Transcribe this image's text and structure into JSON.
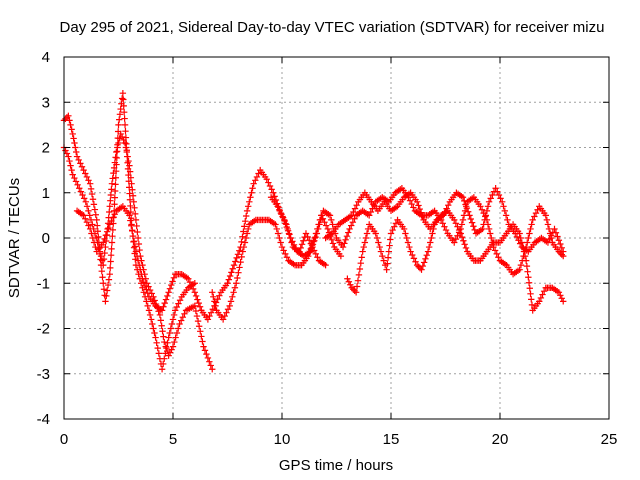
{
  "chart_data": {
    "type": "scatter",
    "title": "Day 295 of 2021, Sidereal Day-to-day VTEC variation (SDTVAR) for receiver mizu",
    "xlabel": "GPS time / hours",
    "ylabel": "SDTVAR / TECUs",
    "xlim": [
      0,
      25
    ],
    "ylim": [
      -4,
      4
    ],
    "xticks": [
      0,
      5,
      10,
      15,
      20,
      25
    ],
    "xtick_labels": [
      "0",
      "5",
      "10",
      "15",
      "20",
      "25"
    ],
    "yticks": [
      -4,
      -3,
      -2,
      -1,
      0,
      1,
      2,
      3,
      4
    ],
    "ytick_labels": [
      "-4",
      "-3",
      "-2",
      "-1",
      "0",
      "1",
      "2",
      "3",
      "4"
    ],
    "grid": true,
    "marker": "plus",
    "color": "#ff0000",
    "series": [
      {
        "name": "track-1",
        "points": [
          [
            0.0,
            2.6
          ],
          [
            0.2,
            2.7
          ],
          [
            0.4,
            2.3
          ],
          [
            0.6,
            1.8
          ],
          [
            0.9,
            1.5
          ],
          [
            1.2,
            1.2
          ],
          [
            1.5,
            0.4
          ],
          [
            1.7,
            -0.6
          ],
          [
            1.9,
            -1.4
          ],
          [
            2.1,
            -0.8
          ],
          [
            2.3,
            0.6
          ],
          [
            2.5,
            2.5
          ],
          [
            2.7,
            3.2
          ],
          [
            2.9,
            1.8
          ],
          [
            3.1,
            0.3
          ],
          [
            3.3,
            -0.6
          ],
          [
            3.6,
            -1.1
          ],
          [
            3.9,
            -1.6
          ],
          [
            4.2,
            -2.2
          ],
          [
            4.5,
            -2.9
          ],
          [
            4.8,
            -2.2
          ],
          [
            5.1,
            -1.6
          ],
          [
            5.4,
            -1.3
          ],
          [
            5.7,
            -1.1
          ],
          [
            6.0,
            -1.0
          ]
        ]
      },
      {
        "name": "track-2",
        "points": [
          [
            0.0,
            2.0
          ],
          [
            0.2,
            1.8
          ],
          [
            0.4,
            1.4
          ],
          [
            0.7,
            1.1
          ],
          [
            1.0,
            0.8
          ],
          [
            1.3,
            0.3
          ],
          [
            1.6,
            -0.2
          ],
          [
            1.8,
            -0.6
          ],
          [
            2.0,
            0.2
          ],
          [
            2.2,
            1.2
          ],
          [
            2.4,
            1.9
          ],
          [
            2.6,
            2.3
          ],
          [
            2.8,
            2.1
          ],
          [
            3.0,
            1.6
          ],
          [
            3.2,
            0.8
          ],
          [
            3.5,
            -0.4
          ],
          [
            3.8,
            -1.0
          ],
          [
            4.1,
            -1.3
          ],
          [
            4.4,
            -1.7
          ],
          [
            4.6,
            -2.3
          ],
          [
            4.8,
            -2.6
          ],
          [
            5.0,
            -2.4
          ],
          [
            5.3,
            -1.9
          ],
          [
            5.6,
            -1.6
          ],
          [
            6.0,
            -1.5
          ],
          [
            6.4,
            -2.4
          ],
          [
            6.8,
            -2.9
          ]
        ]
      },
      {
        "name": "track-3",
        "points": [
          [
            0.6,
            0.6
          ],
          [
            0.9,
            0.5
          ],
          [
            1.2,
            0.2
          ],
          [
            1.5,
            -0.3
          ],
          [
            1.8,
            -0.1
          ],
          [
            2.1,
            0.3
          ],
          [
            2.4,
            0.6
          ],
          [
            2.7,
            0.7
          ],
          [
            3.0,
            0.5
          ],
          [
            3.3,
            -0.3
          ],
          [
            3.6,
            -0.9
          ],
          [
            3.9,
            -1.3
          ],
          [
            4.2,
            -1.5
          ],
          [
            4.5,
            -1.6
          ],
          [
            4.8,
            -1.2
          ],
          [
            5.1,
            -0.8
          ],
          [
            5.4,
            -0.8
          ],
          [
            5.7,
            -0.9
          ],
          [
            6.0,
            -1.2
          ],
          [
            6.3,
            -1.6
          ],
          [
            6.6,
            -1.8
          ],
          [
            6.9,
            -1.5
          ],
          [
            7.2,
            -1.2
          ],
          [
            7.5,
            -1.0
          ],
          [
            7.8,
            -0.6
          ],
          [
            8.1,
            -0.2
          ],
          [
            8.4,
            0.6
          ],
          [
            8.7,
            1.2
          ],
          [
            9.0,
            1.5
          ],
          [
            9.3,
            1.3
          ],
          [
            9.6,
            1.0
          ],
          [
            9.9,
            0.6
          ],
          [
            10.2,
            0.3
          ],
          [
            10.5,
            -0.2
          ],
          [
            10.8,
            -0.3
          ],
          [
            11.1,
            0.1
          ],
          [
            11.4,
            -0.2
          ],
          [
            11.7,
            -0.5
          ],
          [
            12.0,
            -0.6
          ]
        ]
      },
      {
        "name": "track-4",
        "points": [
          [
            6.8,
            -1.2
          ],
          [
            7.0,
            -1.6
          ],
          [
            7.3,
            -1.8
          ],
          [
            7.6,
            -1.5
          ],
          [
            7.9,
            -1.0
          ],
          [
            8.2,
            -0.3
          ],
          [
            8.5,
            0.3
          ],
          [
            8.8,
            0.4
          ],
          [
            9.1,
            0.4
          ],
          [
            9.4,
            0.4
          ],
          [
            9.7,
            0.3
          ],
          [
            10.0,
            -0.2
          ],
          [
            10.3,
            -0.5
          ],
          [
            10.6,
            -0.6
          ],
          [
            10.9,
            -0.6
          ],
          [
            11.2,
            -0.4
          ],
          [
            11.5,
            0.0
          ],
          [
            11.8,
            0.5
          ],
          [
            12.1,
            0.2
          ],
          [
            12.4,
            -0.2
          ],
          [
            12.7,
            -0.4
          ]
        ]
      },
      {
        "name": "track-5",
        "points": [
          [
            9.5,
            0.9
          ],
          [
            9.8,
            0.7
          ],
          [
            10.1,
            0.4
          ],
          [
            10.4,
            0.0
          ],
          [
            10.7,
            -0.3
          ],
          [
            11.0,
            -0.4
          ],
          [
            11.3,
            -0.3
          ],
          [
            11.6,
            0.1
          ],
          [
            11.9,
            0.6
          ],
          [
            12.2,
            0.5
          ],
          [
            12.5,
            0.0
          ],
          [
            12.8,
            -0.2
          ],
          [
            13.1,
            0.2
          ],
          [
            13.4,
            0.5
          ],
          [
            13.7,
            0.6
          ],
          [
            14.0,
            0.5
          ],
          [
            14.3,
            0.8
          ],
          [
            14.6,
            0.9
          ],
          [
            14.9,
            0.8
          ],
          [
            15.2,
            1.0
          ],
          [
            15.5,
            1.1
          ],
          [
            15.8,
            0.9
          ],
          [
            16.1,
            0.6
          ],
          [
            16.4,
            0.5
          ],
          [
            16.7,
            0.5
          ],
          [
            17.0,
            0.6
          ],
          [
            17.3,
            0.4
          ],
          [
            17.6,
            0.1
          ],
          [
            17.9,
            -0.1
          ],
          [
            18.2,
            0.2
          ],
          [
            18.5,
            0.8
          ],
          [
            18.8,
            0.9
          ],
          [
            19.1,
            0.7
          ],
          [
            19.4,
            0.4
          ],
          [
            19.7,
            -0.2
          ],
          [
            20.0,
            -0.5
          ],
          [
            20.3,
            -0.6
          ],
          [
            20.6,
            -0.8
          ],
          [
            20.9,
            -0.7
          ],
          [
            21.2,
            -0.2
          ],
          [
            21.5,
            0.4
          ],
          [
            21.8,
            0.7
          ],
          [
            22.1,
            0.5
          ],
          [
            22.4,
            -0.1
          ],
          [
            22.7,
            -0.3
          ],
          [
            22.9,
            -0.4
          ]
        ]
      },
      {
        "name": "track-6",
        "points": [
          [
            12.0,
            0.0
          ],
          [
            12.3,
            0.1
          ],
          [
            12.6,
            0.3
          ],
          [
            12.9,
            0.4
          ],
          [
            13.2,
            0.5
          ],
          [
            13.5,
            0.8
          ],
          [
            13.8,
            1.0
          ],
          [
            14.1,
            0.8
          ],
          [
            14.4,
            0.6
          ],
          [
            14.7,
            0.8
          ],
          [
            15.0,
            0.6
          ],
          [
            15.3,
            0.7
          ],
          [
            15.6,
            0.9
          ],
          [
            15.9,
            1.0
          ],
          [
            16.2,
            0.8
          ],
          [
            16.5,
            0.4
          ],
          [
            16.8,
            0.2
          ],
          [
            17.1,
            0.4
          ],
          [
            17.4,
            0.5
          ],
          [
            17.7,
            0.8
          ],
          [
            18.0,
            1.0
          ],
          [
            18.3,
            0.9
          ],
          [
            18.6,
            0.5
          ],
          [
            18.9,
            0.1
          ],
          [
            19.2,
            0.2
          ],
          [
            19.5,
            0.8
          ],
          [
            19.8,
            1.1
          ],
          [
            20.1,
            0.8
          ],
          [
            20.4,
            0.3
          ],
          [
            20.7,
            0.1
          ],
          [
            21.0,
            -0.2
          ],
          [
            21.3,
            -0.3
          ],
          [
            21.6,
            -0.1
          ],
          [
            21.9,
            0.0
          ],
          [
            22.2,
            -0.1
          ],
          [
            22.5,
            0.2
          ],
          [
            22.9,
            -0.3
          ]
        ]
      },
      {
        "name": "track-7",
        "points": [
          [
            13.0,
            -0.9
          ],
          [
            13.2,
            -1.1
          ],
          [
            13.4,
            -1.2
          ],
          [
            13.7,
            -0.3
          ],
          [
            14.0,
            0.3
          ],
          [
            14.3,
            0.1
          ],
          [
            14.6,
            -0.4
          ],
          [
            14.8,
            -0.7
          ],
          [
            15.0,
            0.1
          ],
          [
            15.3,
            0.4
          ],
          [
            15.6,
            0.2
          ],
          [
            15.9,
            -0.3
          ],
          [
            16.2,
            -0.6
          ],
          [
            16.4,
            -0.7
          ],
          [
            16.7,
            -0.3
          ],
          [
            17.0,
            0.3
          ],
          [
            17.3,
            0.5
          ],
          [
            17.6,
            0.6
          ],
          [
            17.9,
            0.4
          ],
          [
            18.2,
            0.1
          ],
          [
            18.5,
            -0.3
          ],
          [
            18.8,
            -0.5
          ],
          [
            19.1,
            -0.5
          ],
          [
            19.4,
            -0.3
          ],
          [
            19.7,
            -0.1
          ],
          [
            20.0,
            -0.1
          ],
          [
            20.3,
            0.1
          ],
          [
            20.6,
            0.3
          ],
          [
            20.9,
            0.1
          ],
          [
            21.2,
            -0.5
          ],
          [
            21.5,
            -1.6
          ],
          [
            21.8,
            -1.4
          ],
          [
            22.1,
            -1.1
          ],
          [
            22.4,
            -1.1
          ],
          [
            22.7,
            -1.2
          ],
          [
            22.9,
            -1.4
          ]
        ]
      }
    ]
  }
}
